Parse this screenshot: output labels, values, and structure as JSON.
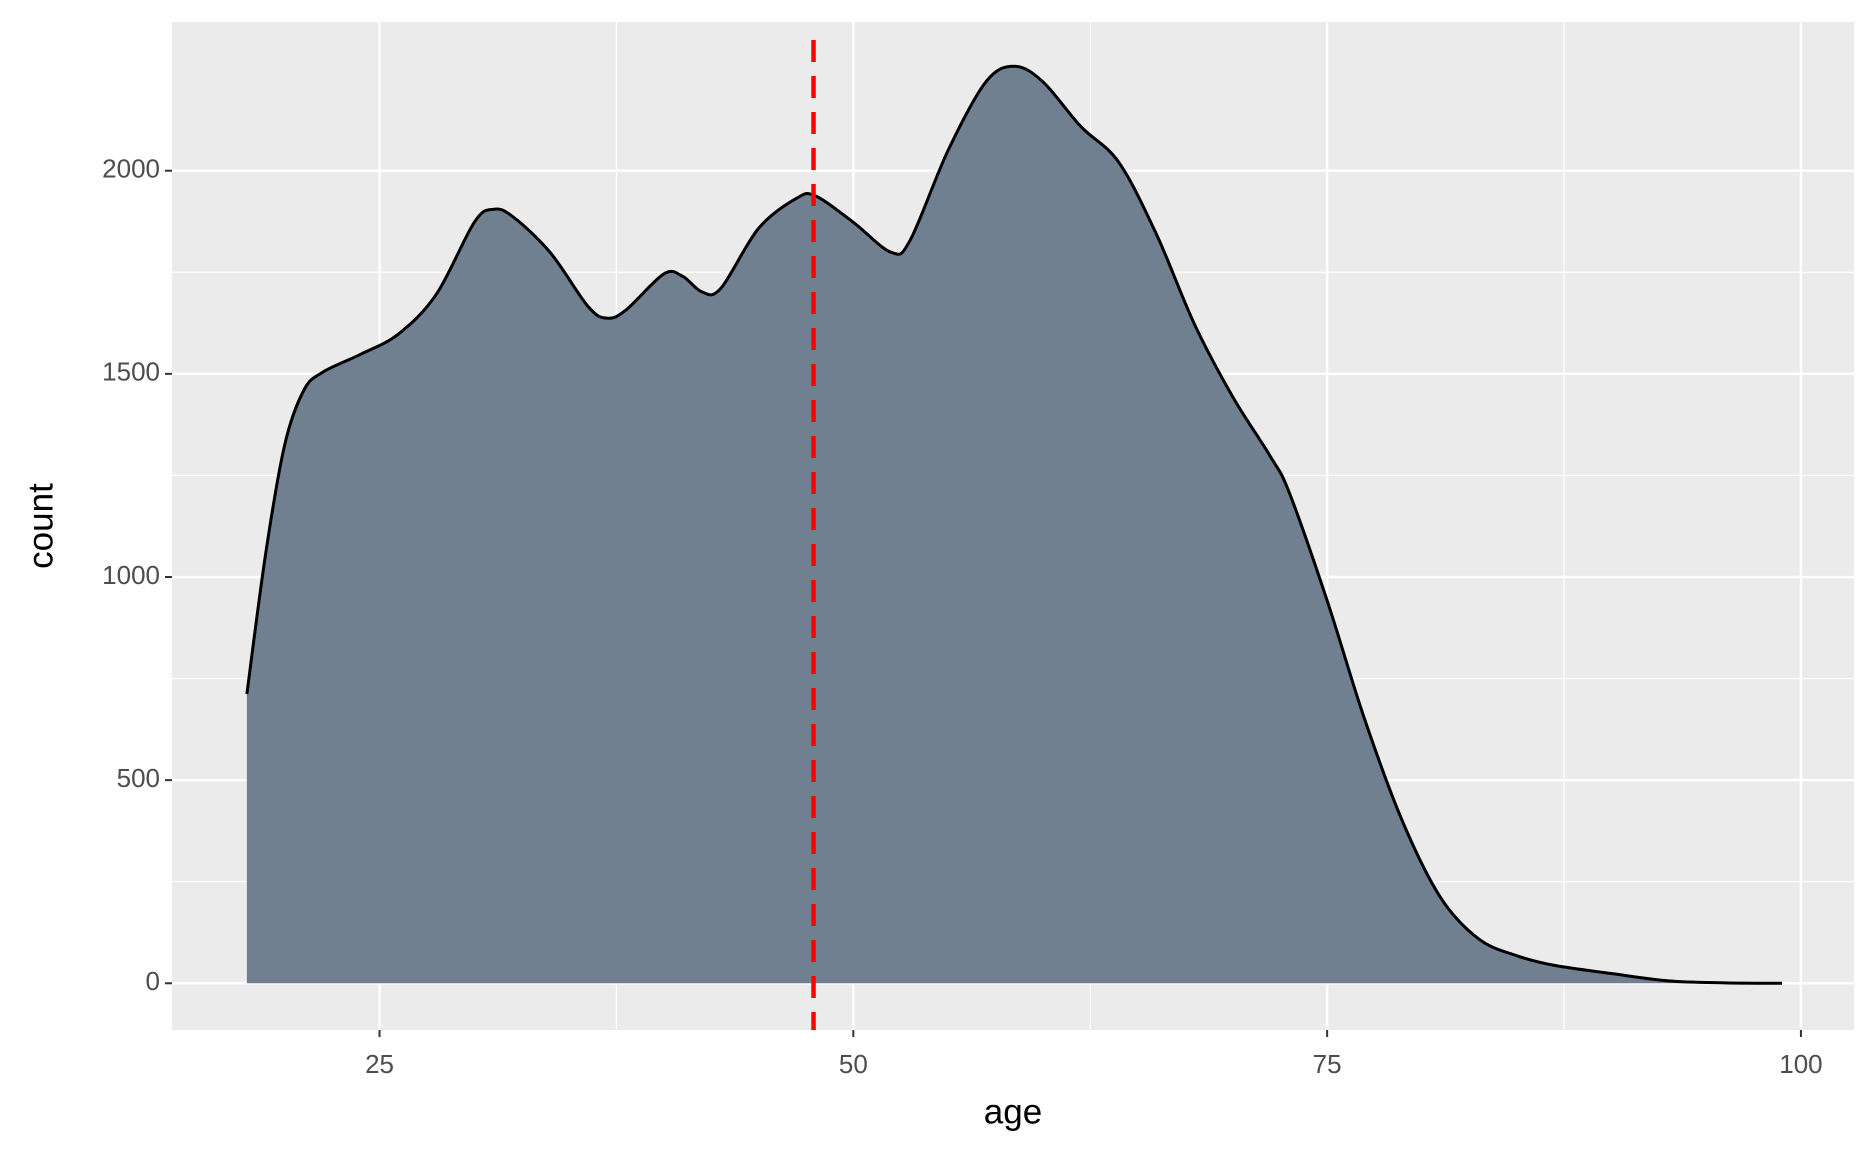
{
  "chart_data": {
    "type": "area",
    "x_label": "age",
    "y_label": "count",
    "x": [
      18,
      19,
      20,
      21,
      22,
      24,
      26,
      28,
      30,
      31,
      32,
      34,
      36,
      37,
      38,
      40,
      41,
      42,
      43,
      45,
      47,
      48,
      50,
      52,
      53,
      55,
      57,
      58.5,
      60,
      62,
      64,
      66,
      68,
      70,
      72,
      73,
      75,
      77,
      79,
      81,
      83,
      85,
      87,
      90,
      93,
      96,
      99
    ],
    "values": [
      712,
      1060,
      1326,
      1459,
      1504,
      1548,
      1598,
      1696,
      1873,
      1905,
      1888,
      1799,
      1666,
      1637,
      1657,
      1746,
      1740,
      1702,
      1710,
      1858,
      1932,
      1938,
      1873,
      1799,
      1829,
      2050,
      2219,
      2257,
      2219,
      2109,
      2021,
      1843,
      1622,
      1445,
      1297,
      1208,
      942,
      647,
      396,
      210,
      109,
      68,
      44,
      24,
      6,
      1,
      0
    ],
    "color": "#708090",
    "line_color": "#000000",
    "vline": 47.9,
    "vline_color": "#ff0000",
    "xlim": [
      14.05,
      102.8
    ],
    "ylim": [
      -115,
      2366
    ],
    "xticks": [
      25,
      50,
      75,
      100
    ],
    "yticks": [
      0,
      500,
      1000,
      1500,
      2000
    ],
    "grid": true
  }
}
